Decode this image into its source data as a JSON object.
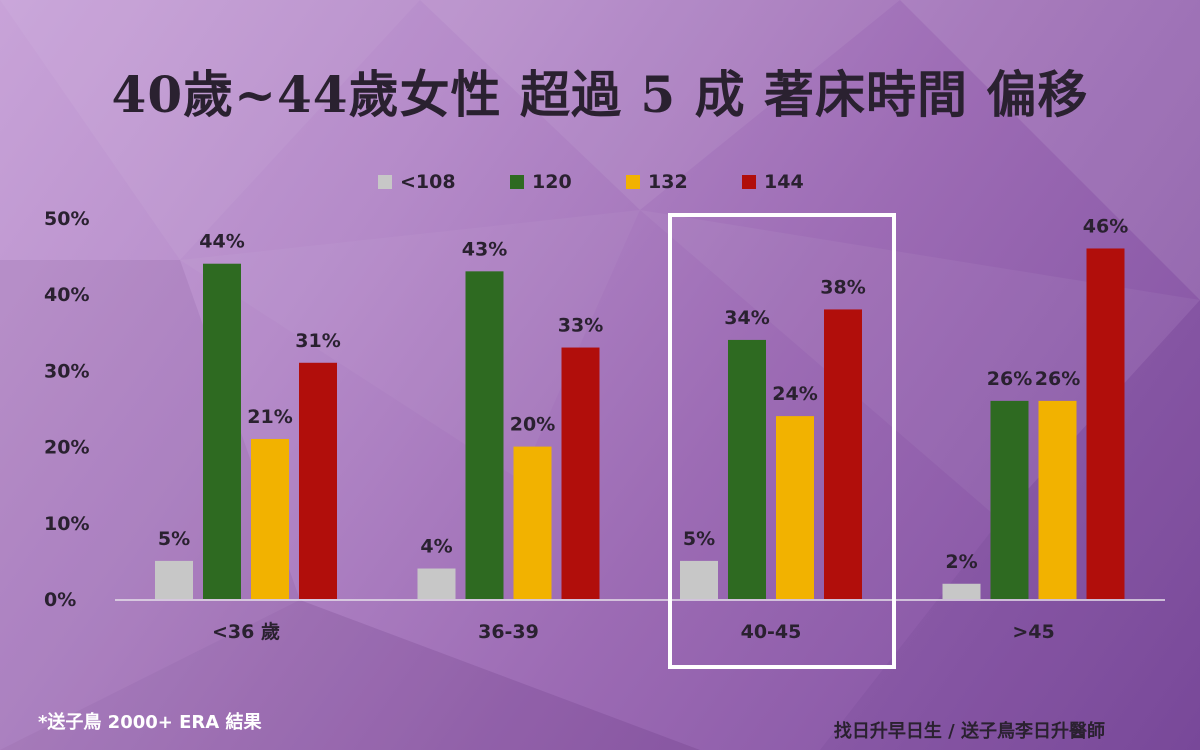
{
  "title": "40歲~44歲女性 超過 5 成 著床時間 偏移",
  "footnote": "*送子鳥 2000+ ERA 結果",
  "credit": "找日升早日生 / 送子鳥李日升醫師",
  "colors": {
    "series": [
      "#c7c7c7",
      "#2e6a21",
      "#f2b200",
      "#b10e0b"
    ],
    "highlight_box": "#ffffff",
    "text": "#2a2130"
  },
  "chart_data": {
    "type": "bar",
    "categories": [
      "<36 歲",
      "36-39",
      "40-45",
      ">45"
    ],
    "series": [
      {
        "name": "<108",
        "values": [
          5,
          4,
          5,
          2
        ]
      },
      {
        "name": "120",
        "values": [
          44,
          43,
          34,
          26
        ]
      },
      {
        "name": "132",
        "values": [
          21,
          20,
          24,
          26
        ]
      },
      {
        "name": "144",
        "values": [
          31,
          33,
          38,
          46
        ]
      }
    ],
    "data_labels": [
      [
        "5%",
        "44%",
        "21%",
        "31%"
      ],
      [
        "4%",
        "43%",
        "20%",
        "33%"
      ],
      [
        "5%",
        "34%",
        "24%",
        "38%"
      ],
      [
        "2%",
        "26%",
        "26%",
        "46%"
      ]
    ],
    "y_ticks": [
      "0%",
      "10%",
      "20%",
      "30%",
      "40%",
      "50%"
    ],
    "ylim": [
      0,
      50
    ],
    "legend_position": "top",
    "grid": false,
    "highlighted_category": "40-45"
  }
}
